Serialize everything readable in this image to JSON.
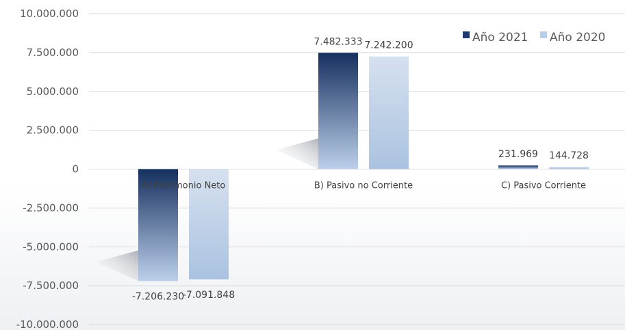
{
  "chart_data": {
    "type": "bar",
    "title": "",
    "xlabel": "",
    "ylabel": "",
    "categories": [
      "A) Patrimonio Neto",
      "B) Pasivo no Corriente",
      "C) Pasivo Corriente"
    ],
    "series": [
      {
        "name": "Año 2021",
        "values": [
          -7206230,
          7482333,
          231969
        ],
        "value_labels": [
          "-7.206.230",
          "7.482.333",
          "231.969"
        ],
        "color_top": "#16305f",
        "color_bottom": "#bcd0ea"
      },
      {
        "name": "Año 2020",
        "values": [
          -7091848,
          7242200,
          144728
        ],
        "value_labels": [
          "-7.091.848",
          "7.242.200",
          "144.728"
        ],
        "color_top": "#d6e1ef",
        "color_bottom": "#aac2e0"
      }
    ],
    "ylim": [
      -10000000,
      10000000
    ],
    "yticks": [
      10000000,
      7500000,
      5000000,
      2500000,
      0,
      -2500000,
      -5000000,
      -7500000,
      -10000000
    ],
    "ytick_labels": [
      "10.000.000",
      "7.500.000",
      "5.000.000",
      "2.500.000",
      "0",
      "-2.500.000",
      "-5.000.000",
      "-7.500.000",
      "-10.000.000"
    ],
    "grid": true,
    "legend_position": "top-right",
    "gridline_color": "#d9d9d9"
  }
}
